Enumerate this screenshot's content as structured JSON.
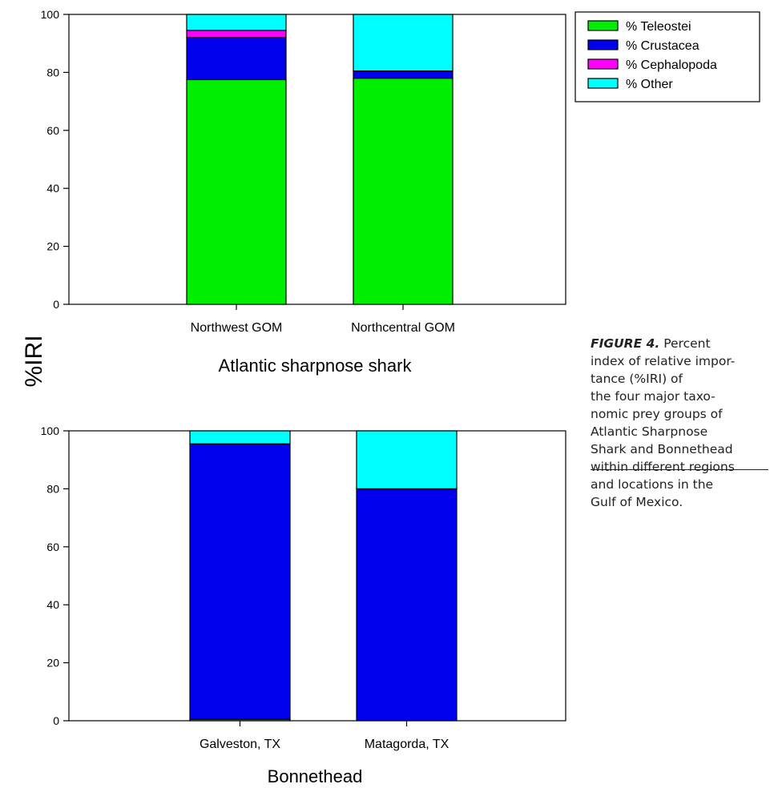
{
  "y_axis_title": "%IRI",
  "caption": {
    "label": "FIGURE 4.",
    "lines": [
      "Percent",
      "index of relative impor-",
      "tance (%IRI) of",
      "the four major taxo-",
      "nomic prey groups of",
      "Atlantic Sharpnose",
      "Shark and Bonnethead",
      "within different regions",
      "and locations in the",
      "Gulf of Mexico."
    ]
  },
  "legend": [
    {
      "label": "% Teleostei",
      "color": "#00ee00"
    },
    {
      "label": "% Crustacea",
      "color": "#0000ee"
    },
    {
      "label": "% Cephalopoda",
      "color": "#ff00ff"
    },
    {
      "label": "% Other",
      "color": "#00ffff"
    }
  ],
  "chart_data": [
    {
      "type": "bar",
      "stacked": true,
      "title": "Atlantic sharpnose shark",
      "ylabel": "%IRI",
      "ylim": [
        0,
        100
      ],
      "yticks": [
        0,
        20,
        40,
        60,
        80,
        100
      ],
      "categories": [
        "Northwest GOM",
        "Northcentral GOM"
      ],
      "series": [
        {
          "name": "% Teleostei",
          "color": "#00ee00",
          "values": [
            77.5,
            78
          ]
        },
        {
          "name": "% Crustacea",
          "color": "#0000ee",
          "values": [
            14.5,
            2.5
          ]
        },
        {
          "name": "% Cephalopoda",
          "color": "#ff00ff",
          "values": [
            2.5,
            0
          ]
        },
        {
          "name": "% Other",
          "color": "#00ffff",
          "values": [
            5.5,
            19.5
          ]
        }
      ],
      "legend_position": "outside-top-right"
    },
    {
      "type": "bar",
      "stacked": true,
      "title": "Bonnethead",
      "ylabel": "%IRI",
      "ylim": [
        0,
        100
      ],
      "yticks": [
        0,
        20,
        40,
        60,
        80,
        100
      ],
      "categories": [
        "Galveston, TX",
        "Matagorda, TX"
      ],
      "series": [
        {
          "name": "% Teleostei",
          "color": "#00ee00",
          "values": [
            0.5,
            0
          ]
        },
        {
          "name": "% Crustacea",
          "color": "#0000ee",
          "values": [
            95,
            80
          ]
        },
        {
          "name": "% Cephalopoda",
          "color": "#ff00ff",
          "values": [
            0,
            0
          ]
        },
        {
          "name": "% Other",
          "color": "#00ffff",
          "values": [
            4.5,
            20
          ]
        }
      ]
    }
  ]
}
